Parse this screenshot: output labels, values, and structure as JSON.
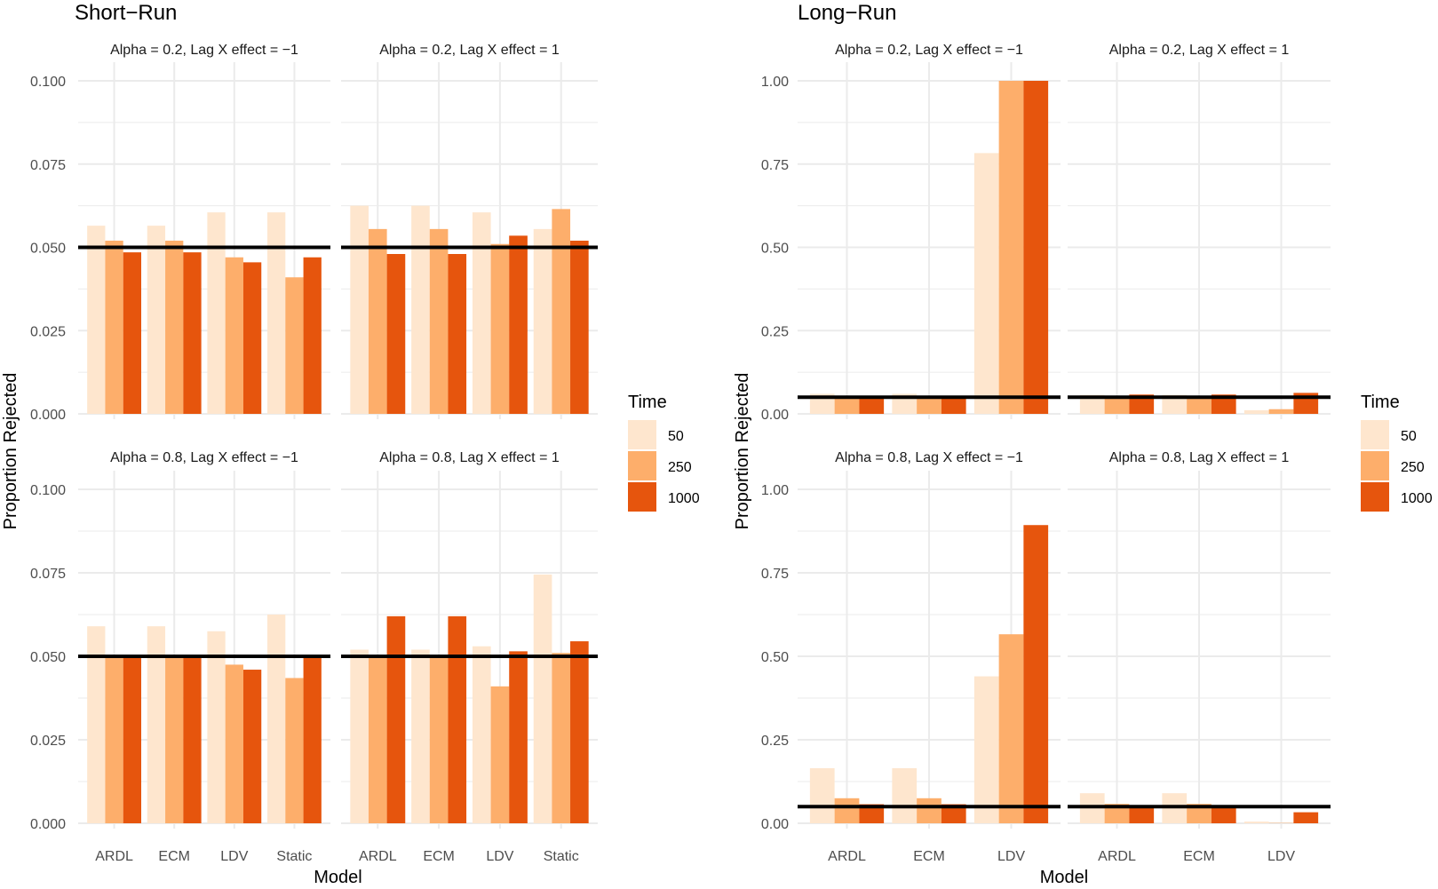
{
  "chart_data": [
    {
      "type": "bar",
      "title": "Short−Run",
      "xlabel": "Model",
      "ylabel": "Proportion Rejected",
      "ylim": [
        0,
        0.1
      ],
      "yticks": [
        "0.000",
        "0.025",
        "0.050",
        "0.075",
        "0.100"
      ],
      "reference_line": 0.05,
      "grid": true,
      "legend": {
        "title": "Time",
        "position": "right",
        "entries": [
          "50",
          "250",
          "1000"
        ],
        "colors": [
          "#fee6ce",
          "#fdae6b",
          "#e6550d"
        ]
      },
      "facets": [
        {
          "label": "Alpha = 0.2, Lag X effect = −1",
          "categories": [
            "ARDL",
            "ECM",
            "LDV",
            "Static"
          ],
          "series": [
            {
              "name": "50",
              "values": [
                0.0565,
                0.0565,
                0.0605,
                0.0605
              ]
            },
            {
              "name": "250",
              "values": [
                0.052,
                0.052,
                0.047,
                0.041
              ]
            },
            {
              "name": "1000",
              "values": [
                0.0485,
                0.0485,
                0.0455,
                0.047
              ]
            }
          ]
        },
        {
          "label": "Alpha = 0.2, Lag X effect = 1",
          "categories": [
            "ARDL",
            "ECM",
            "LDV",
            "Static"
          ],
          "series": [
            {
              "name": "50",
              "values": [
                0.0625,
                0.0625,
                0.0605,
                0.0555
              ]
            },
            {
              "name": "250",
              "values": [
                0.0555,
                0.0555,
                0.051,
                0.0615
              ]
            },
            {
              "name": "1000",
              "values": [
                0.048,
                0.048,
                0.0535,
                0.052
              ]
            }
          ]
        },
        {
          "label": "Alpha = 0.8, Lag X effect = −1",
          "categories": [
            "ARDL",
            "ECM",
            "LDV",
            "Static"
          ],
          "series": [
            {
              "name": "50",
              "values": [
                0.059,
                0.059,
                0.0575,
                0.0625
              ]
            },
            {
              "name": "250",
              "values": [
                0.05,
                0.05,
                0.0475,
                0.0435
              ]
            },
            {
              "name": "1000",
              "values": [
                0.05,
                0.05,
                0.046,
                0.05
              ]
            }
          ]
        },
        {
          "label": "Alpha = 0.8, Lag X effect = 1",
          "categories": [
            "ARDL",
            "ECM",
            "LDV",
            "Static"
          ],
          "series": [
            {
              "name": "50",
              "values": [
                0.052,
                0.052,
                0.053,
                0.0745
              ]
            },
            {
              "name": "250",
              "values": [
                0.05,
                0.05,
                0.041,
                0.051
              ]
            },
            {
              "name": "1000",
              "values": [
                0.062,
                0.062,
                0.0515,
                0.0545
              ]
            }
          ]
        }
      ]
    },
    {
      "type": "bar",
      "title": "Long−Run",
      "xlabel": "Model",
      "ylabel": "Proportion Rejected",
      "ylim": [
        0,
        1
      ],
      "yticks": [
        "0.00",
        "0.25",
        "0.50",
        "0.75",
        "1.00"
      ],
      "reference_line": 0.05,
      "grid": true,
      "legend": {
        "title": "Time",
        "position": "right",
        "entries": [
          "50",
          "250",
          "1000"
        ],
        "colors": [
          "#fee6ce",
          "#fdae6b",
          "#e6550d"
        ]
      },
      "facets": [
        {
          "label": "Alpha = 0.2, Lag X effect = −1",
          "categories": [
            "ARDL",
            "ECM",
            "LDV"
          ],
          "series": [
            {
              "name": "50",
              "values": [
                0.06,
                0.06,
                0.783
              ]
            },
            {
              "name": "250",
              "values": [
                0.05,
                0.05,
                1.0
              ]
            },
            {
              "name": "1000",
              "values": [
                0.05,
                0.05,
                1.0
              ]
            }
          ]
        },
        {
          "label": "Alpha = 0.2, Lag X effect = 1",
          "categories": [
            "ARDL",
            "ECM",
            "LDV"
          ],
          "series": [
            {
              "name": "50",
              "values": [
                0.057,
                0.057,
                0.011
              ]
            },
            {
              "name": "250",
              "values": [
                0.05,
                0.05,
                0.014
              ]
            },
            {
              "name": "1000",
              "values": [
                0.058,
                0.058,
                0.063
              ]
            }
          ]
        },
        {
          "label": "Alpha = 0.8, Lag X effect = −1",
          "categories": [
            "ARDL",
            "ECM",
            "LDV"
          ],
          "series": [
            {
              "name": "50",
              "values": [
                0.165,
                0.165,
                0.44
              ]
            },
            {
              "name": "250",
              "values": [
                0.075,
                0.075,
                0.566
              ]
            },
            {
              "name": "1000",
              "values": [
                0.057,
                0.057,
                0.893
              ]
            }
          ]
        },
        {
          "label": "Alpha = 0.8, Lag X effect = 1",
          "categories": [
            "ARDL",
            "ECM",
            "LDV"
          ],
          "series": [
            {
              "name": "50",
              "values": [
                0.09,
                0.09,
                0.005
              ]
            },
            {
              "name": "250",
              "values": [
                0.058,
                0.058,
                0.001
              ]
            },
            {
              "name": "1000",
              "values": [
                0.048,
                0.048,
                0.033
              ]
            }
          ]
        }
      ]
    }
  ]
}
